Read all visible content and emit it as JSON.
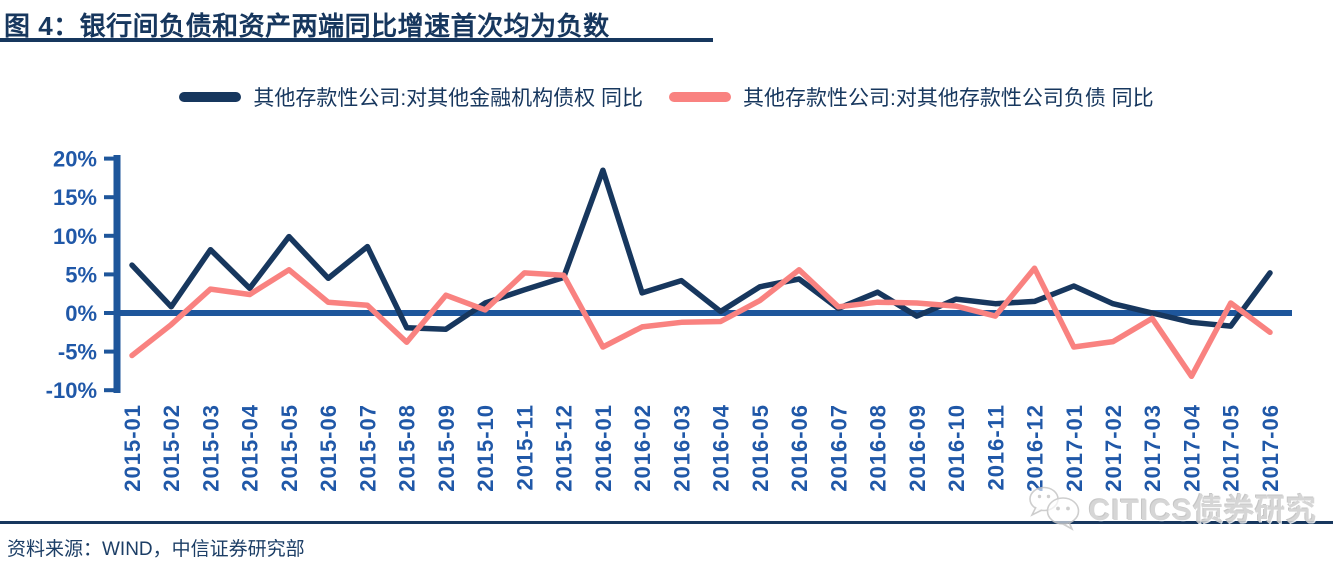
{
  "figure": {
    "title": "图 4：银行间负债和资产两端同比增速首次均为负数",
    "source": "资料来源：WIND，中信证券研究部",
    "watermark": "CITICS债券研究"
  },
  "colors": {
    "series_navy": "#17375E",
    "series_pink": "#F98280",
    "axis_blue": "#1E569B",
    "label_blue": "#2058A8",
    "title_navy": "#17375E",
    "watermark_gray": "#D0D0D0"
  },
  "chart_data": {
    "type": "line",
    "title": "银行间负债和资产两端同比增速首次均为负数",
    "xlabel": "",
    "ylabel": "",
    "ylim": [
      -10,
      20
    ],
    "yticks": [
      20,
      15,
      10,
      5,
      0,
      -5,
      -10
    ],
    "ytick_suffix": "%",
    "grid": false,
    "legend_position": "top",
    "categories": [
      "2015-01",
      "2015-02",
      "2015-03",
      "2015-04",
      "2015-05",
      "2015-06",
      "2015-07",
      "2015-08",
      "2015-09",
      "2015-10",
      "2015-11",
      "2015-12",
      "2016-01",
      "2016-02",
      "2016-03",
      "2016-04",
      "2016-05",
      "2016-06",
      "2016-07",
      "2016-08",
      "2016-09",
      "2016-10",
      "2016-11",
      "2016-12",
      "2017-01",
      "2017-02",
      "2017-03",
      "2017-04",
      "2017-05",
      "2017-06"
    ],
    "series": [
      {
        "name": "其他存款性公司:对其他金融机构债权 同比",
        "color": "#17375E",
        "values": [
          6.2,
          0.8,
          8.2,
          3.2,
          9.9,
          4.5,
          8.6,
          -1.9,
          -2.1,
          1.3,
          3.0,
          4.6,
          18.5,
          2.6,
          4.2,
          0.2,
          3.4,
          4.4,
          0.6,
          2.7,
          -0.4,
          1.8,
          1.2,
          1.5,
          3.5,
          1.2,
          0.0,
          -1.2,
          -1.7,
          5.2
        ]
      },
      {
        "name": "其他存款性公司:对其他存款性公司负债 同比",
        "color": "#F98280",
        "values": [
          -5.5,
          -1.5,
          3.1,
          2.4,
          5.6,
          1.4,
          1.0,
          -3.8,
          2.3,
          0.4,
          5.2,
          4.9,
          -4.4,
          -1.8,
          -1.2,
          -1.1,
          1.6,
          5.6,
          0.8,
          1.4,
          1.3,
          0.9,
          -0.4,
          5.8,
          -4.4,
          -3.7,
          -0.7,
          -8.2,
          1.3,
          -2.5
        ]
      }
    ]
  }
}
